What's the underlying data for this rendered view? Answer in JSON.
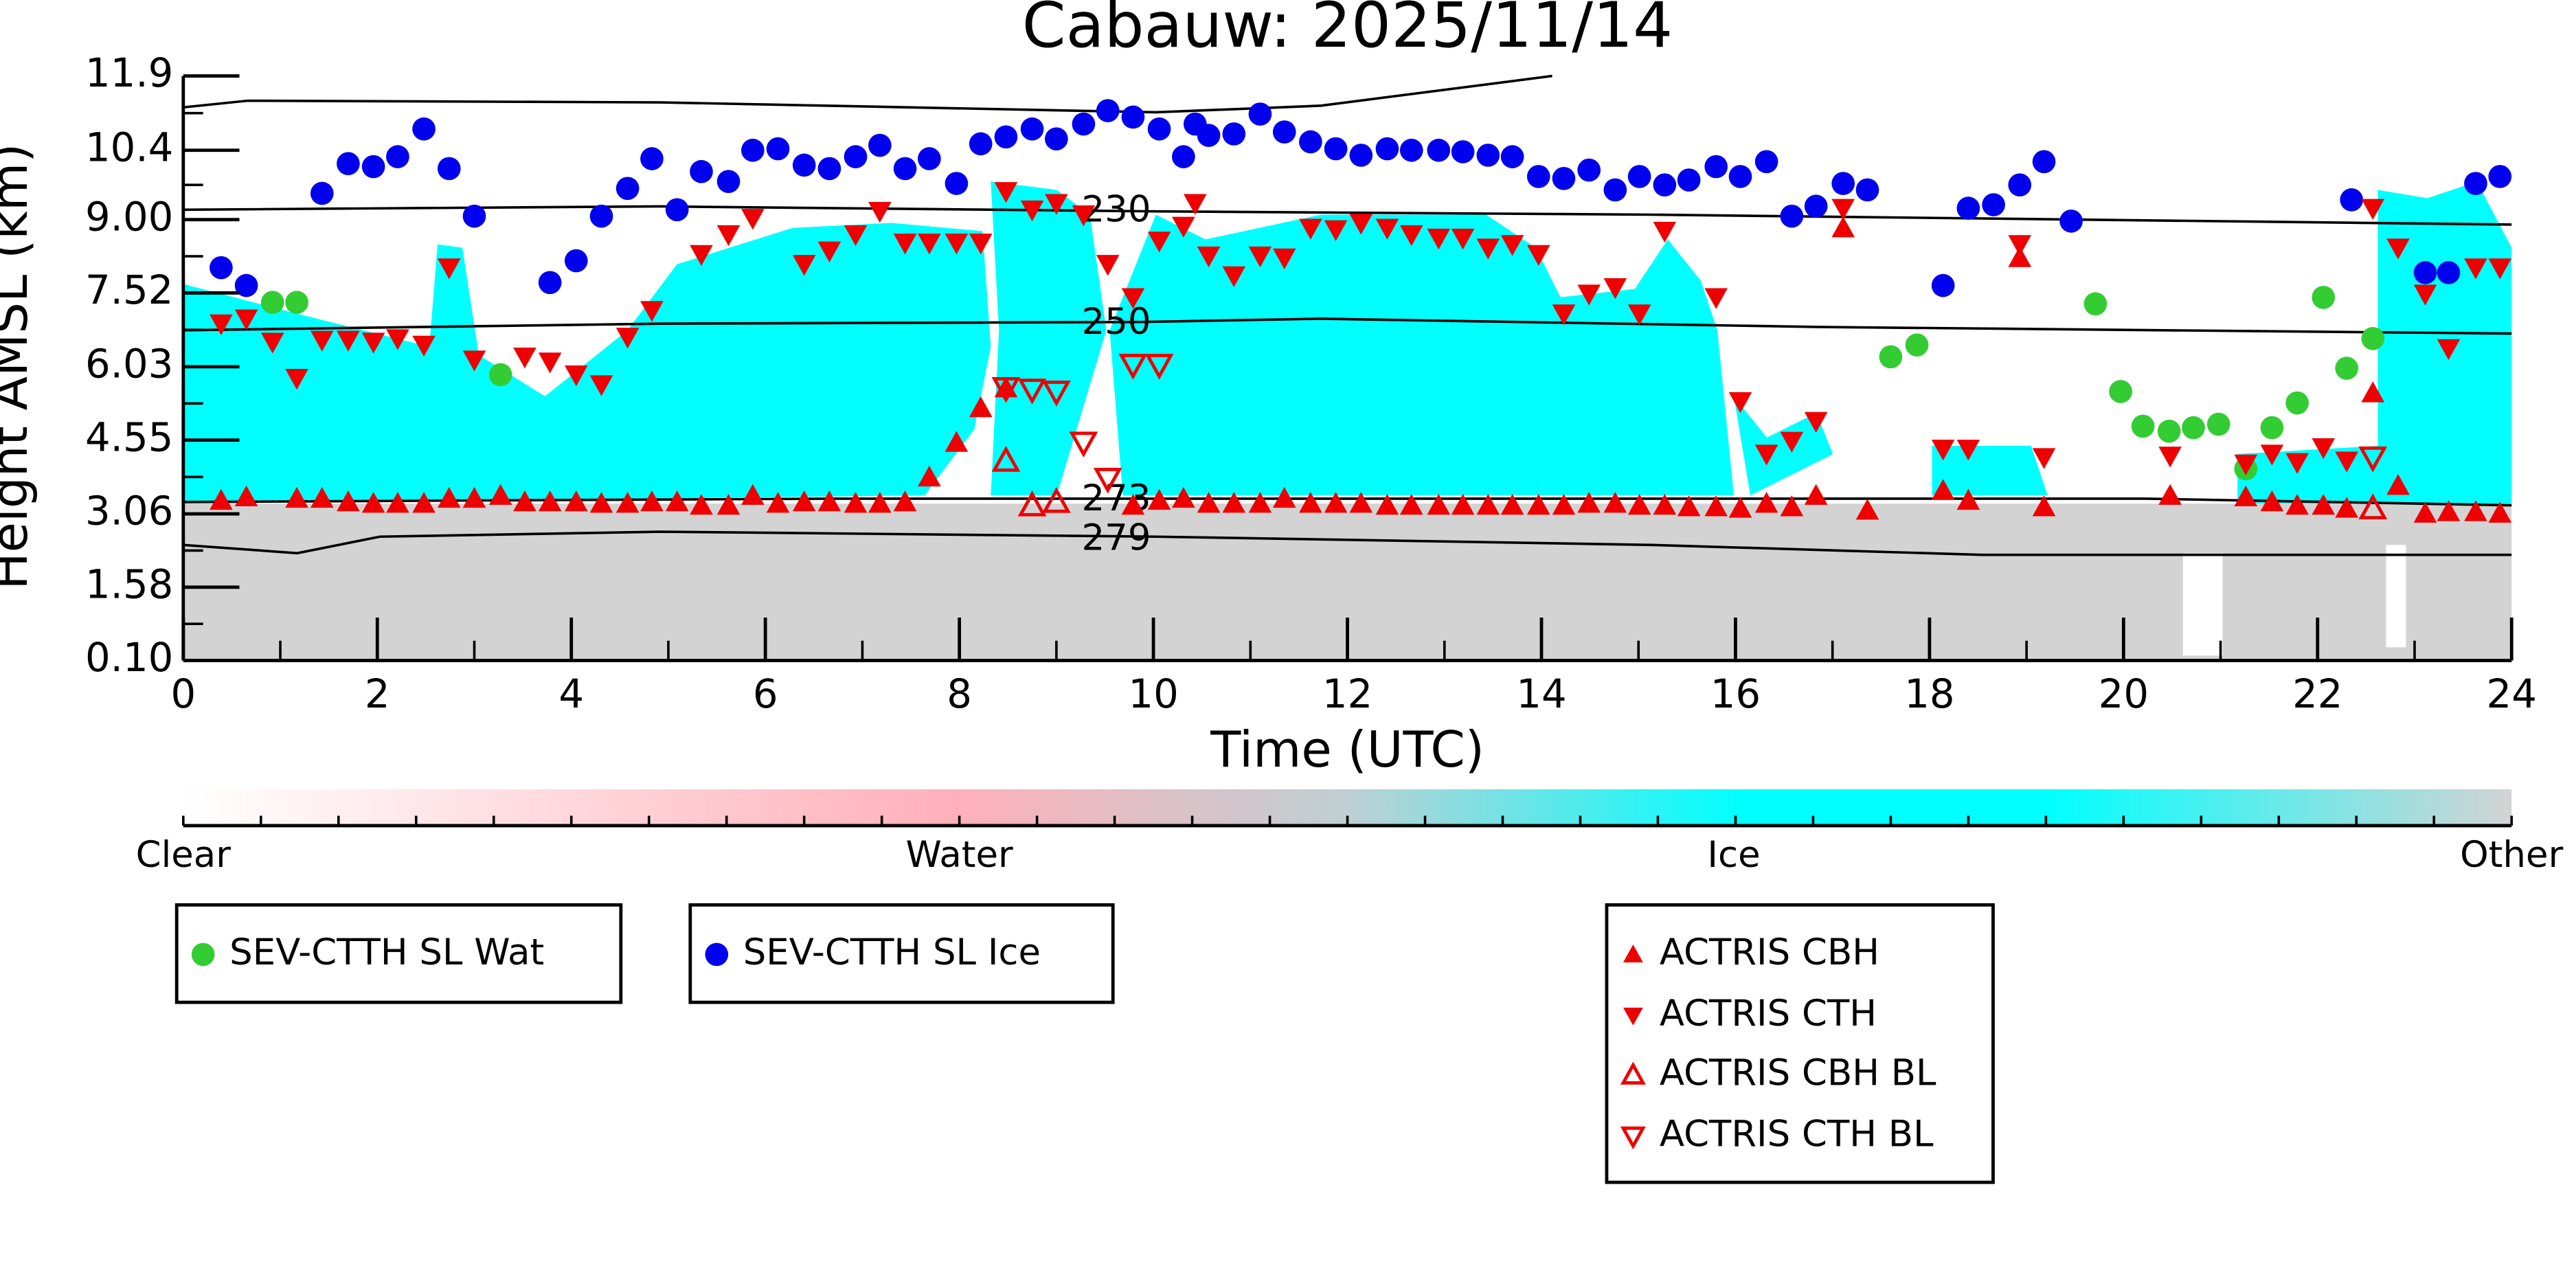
{
  "chart_data": {
    "type": "scatter",
    "title": "Cabauw: 2025/11/14",
    "xlabel": "Time (UTC)",
    "ylabel": "Height AMSL (km)",
    "xlim": [
      0,
      24
    ],
    "ylim": [
      0.1,
      11.9
    ],
    "xticks": [
      0,
      2,
      4,
      6,
      8,
      10,
      12,
      14,
      16,
      18,
      20,
      22,
      24
    ],
    "yticks": [
      {
        "value": 0.1,
        "label": "0.10"
      },
      1.58,
      3.06,
      4.55,
      6.03,
      7.52,
      {
        "value": 9,
        "label": "9.00"
      },
      10.4,
      11.9
    ],
    "contours": [
      230,
      250,
      273,
      279
    ],
    "colorbar": {
      "labels": [
        "Clear",
        "Water",
        "Ice",
        "Other"
      ]
    },
    "series": [
      {
        "name": "SEV-CTTH SL Wat",
        "color": "#33cc33",
        "marker": "o",
        "filled": true,
        "x": [
          0.92,
          1.17,
          3.27,
          17.6,
          17.87,
          19.71,
          19.97,
          20.2,
          20.47,
          20.72,
          20.98,
          21.26,
          21.53,
          21.79,
          22.06,
          22.3,
          22.57
        ],
        "values": [
          7.33,
          7.33,
          5.87,
          6.23,
          6.47,
          7.3,
          5.53,
          4.83,
          4.73,
          4.8,
          4.87,
          3.97,
          4.8,
          5.3,
          7.43,
          6.0,
          6.6
        ]
      },
      {
        "name": "SEV-CTTH SL Ice",
        "color": "#0000ee",
        "marker": "o",
        "filled": true,
        "x": [
          0.39,
          0.65,
          1.43,
          1.7,
          1.96,
          2.21,
          2.48,
          2.74,
          3.0,
          3.78,
          4.05,
          4.31,
          4.58,
          4.83,
          5.09,
          5.34,
          5.62,
          5.87,
          6.13,
          6.4,
          6.66,
          6.93,
          7.18,
          7.44,
          7.69,
          7.97,
          8.22,
          8.48,
          8.75,
          9.0,
          9.28,
          9.53,
          9.79,
          10.06,
          10.31,
          10.43,
          10.57,
          10.83,
          11.1,
          11.35,
          11.62,
          11.88,
          12.14,
          12.41,
          12.66,
          12.94,
          13.19,
          13.45,
          13.7,
          13.97,
          14.23,
          14.49,
          14.76,
          15.01,
          15.27,
          15.52,
          15.8,
          16.05,
          16.32,
          16.58,
          16.83,
          17.11,
          17.36,
          18.14,
          18.4,
          18.66,
          18.93,
          19.18,
          19.46,
          22.35,
          23.11,
          23.35,
          23.63,
          23.88
        ],
        "values": [
          8.03,
          7.67,
          9.53,
          10.13,
          10.07,
          10.27,
          10.83,
          10.03,
          9.07,
          7.73,
          8.17,
          9.07,
          9.63,
          10.23,
          9.2,
          9.97,
          9.77,
          10.4,
          10.43,
          10.1,
          10.03,
          10.27,
          10.5,
          10.03,
          10.23,
          9.73,
          10.53,
          10.67,
          10.83,
          10.63,
          10.93,
          11.2,
          11.07,
          10.83,
          10.27,
          10.93,
          10.7,
          10.73,
          11.13,
          10.77,
          10.57,
          10.43,
          10.3,
          10.43,
          10.4,
          10.4,
          10.37,
          10.3,
          10.27,
          9.87,
          9.83,
          10.0,
          9.6,
          9.87,
          9.7,
          9.8,
          10.07,
          9.87,
          10.17,
          9.07,
          9.27,
          9.73,
          9.6,
          7.67,
          9.23,
          9.3,
          9.7,
          10.17,
          8.97,
          9.4,
          7.93,
          7.93,
          9.73,
          9.87
        ]
      },
      {
        "name": "ACTRIS CBH",
        "color": "#ee0000",
        "marker": "^",
        "filled": true,
        "x": [
          0.39,
          0.65,
          1.17,
          1.43,
          1.7,
          1.96,
          2.21,
          2.48,
          2.74,
          3.0,
          3.27,
          3.52,
          3.78,
          4.05,
          4.31,
          4.58,
          4.83,
          5.09,
          5.34,
          5.62,
          5.87,
          6.13,
          6.4,
          6.66,
          6.93,
          7.18,
          7.44,
          7.69,
          7.97,
          8.22,
          8.48,
          9.79,
          10.06,
          10.31,
          10.57,
          10.83,
          11.1,
          11.35,
          11.62,
          11.88,
          12.14,
          12.41,
          12.66,
          12.94,
          13.19,
          13.45,
          13.7,
          13.97,
          14.23,
          14.49,
          14.76,
          15.01,
          15.27,
          15.52,
          15.8,
          16.05,
          16.32,
          16.58,
          16.83,
          17.11,
          17.36,
          18.14,
          18.4,
          18.93,
          19.18,
          20.48,
          21.26,
          21.53,
          21.79,
          22.06,
          22.3,
          22.57,
          22.83,
          23.11,
          23.35,
          23.63,
          23.88
        ],
        "values": [
          3.33,
          3.4,
          3.37,
          3.37,
          3.3,
          3.27,
          3.27,
          3.27,
          3.37,
          3.37,
          3.43,
          3.3,
          3.3,
          3.3,
          3.27,
          3.27,
          3.3,
          3.3,
          3.23,
          3.23,
          3.43,
          3.27,
          3.3,
          3.3,
          3.27,
          3.27,
          3.3,
          3.8,
          4.5,
          5.2,
          5.6,
          3.23,
          3.33,
          3.37,
          3.27,
          3.27,
          3.27,
          3.37,
          3.27,
          3.27,
          3.27,
          3.23,
          3.23,
          3.23,
          3.23,
          3.23,
          3.23,
          3.23,
          3.23,
          3.27,
          3.27,
          3.23,
          3.23,
          3.2,
          3.2,
          3.17,
          3.27,
          3.2,
          3.43,
          8.83,
          3.13,
          3.53,
          3.33,
          8.23,
          3.2,
          3.43,
          3.4,
          3.3,
          3.23,
          3.23,
          3.17,
          5.5,
          3.63,
          3.07,
          3.1,
          3.1,
          3.07
        ]
      },
      {
        "name": "ACTRIS CTH",
        "color": "#ee0000",
        "marker": "v",
        "filled": true,
        "x": [
          0.39,
          0.65,
          0.92,
          1.17,
          1.43,
          1.7,
          1.96,
          2.21,
          2.48,
          2.74,
          3.0,
          3.52,
          3.78,
          4.05,
          4.31,
          4.58,
          4.83,
          5.34,
          5.62,
          5.87,
          6.4,
          6.66,
          6.93,
          7.18,
          7.44,
          7.69,
          7.97,
          8.22,
          8.48,
          8.75,
          9.0,
          9.28,
          9.53,
          9.79,
          10.06,
          10.31,
          10.43,
          10.57,
          10.83,
          11.1,
          11.35,
          11.62,
          11.88,
          12.14,
          12.41,
          12.66,
          12.94,
          13.19,
          13.45,
          13.7,
          13.97,
          14.23,
          14.49,
          14.76,
          15.01,
          15.27,
          15.8,
          16.05,
          16.32,
          16.58,
          16.83,
          17.11,
          18.14,
          18.4,
          18.93,
          19.18,
          20.48,
          21.26,
          21.53,
          21.79,
          22.06,
          22.3,
          22.57,
          22.83,
          23.11,
          23.35,
          23.63,
          23.88
        ],
        "values": [
          6.9,
          7.0,
          6.53,
          5.8,
          6.57,
          6.57,
          6.53,
          6.6,
          6.47,
          8.03,
          6.17,
          6.23,
          6.13,
          5.87,
          5.67,
          6.63,
          7.17,
          8.3,
          8.7,
          9.03,
          8.1,
          8.37,
          8.7,
          9.17,
          8.53,
          8.53,
          8.53,
          8.53,
          9.57,
          9.2,
          9.33,
          9.1,
          8.1,
          7.43,
          8.57,
          8.87,
          9.33,
          8.27,
          7.87,
          8.27,
          8.23,
          8.83,
          8.8,
          8.93,
          8.83,
          8.7,
          8.63,
          8.63,
          8.43,
          8.5,
          8.3,
          7.1,
          7.5,
          7.63,
          7.1,
          8.77,
          7.43,
          5.33,
          4.27,
          4.53,
          4.93,
          9.23,
          4.37,
          4.37,
          8.5,
          4.2,
          4.23,
          4.07,
          4.27,
          4.1,
          4.4,
          4.13,
          9.23,
          8.43,
          7.5,
          6.4,
          8.03,
          8.03
        ]
      },
      {
        "name": "ACTRIS CBH BL",
        "color": "#ee0000",
        "marker": "^",
        "filled": false,
        "x": [
          8.48,
          8.75,
          9.0,
          22.57
        ],
        "values": [
          4.13,
          3.23,
          3.3,
          3.17
        ]
      },
      {
        "name": "ACTRIS CTH BL",
        "color": "#ee0000",
        "marker": "v",
        "filled": false,
        "x": [
          8.48,
          8.75,
          9.0,
          9.28,
          9.53,
          9.79,
          10.06,
          22.57
        ],
        "values": [
          5.6,
          5.57,
          5.53,
          4.5,
          3.77,
          6.07,
          6.07,
          4.2
        ]
      }
    ]
  }
}
